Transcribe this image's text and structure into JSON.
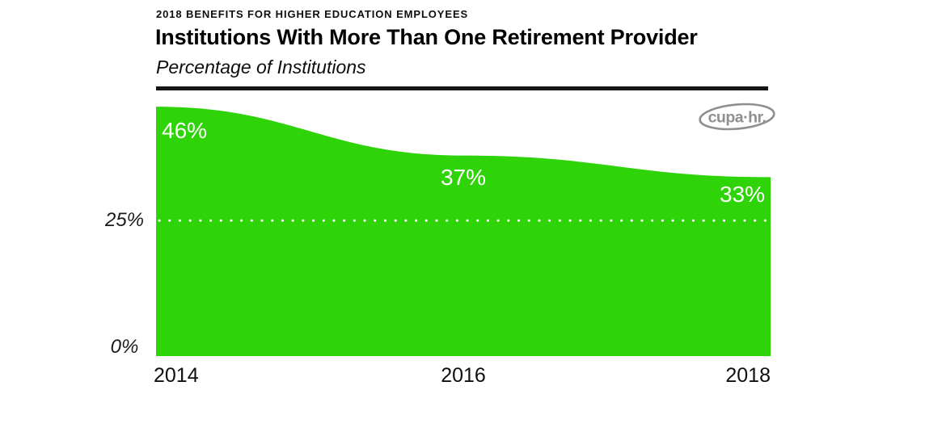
{
  "header": {
    "eyebrow": "2018 BENEFITS FOR HIGHER EDUCATION EMPLOYEES",
    "title": "Institutions With More Than One Retirement Provider",
    "subtitle": "Percentage of Institutions"
  },
  "logo": {
    "text": "cupa·hr."
  },
  "chart_data": {
    "type": "area",
    "title": "Institutions With More Than One Retirement Provider",
    "subtitle": "Percentage of Institutions",
    "categories": [
      "2014",
      "2016",
      "2018"
    ],
    "values": [
      46,
      37,
      33
    ],
    "data_labels": [
      "46%",
      "37%",
      "33%"
    ],
    "ytick_labels": [
      "25%",
      "0%"
    ],
    "ytick_values": [
      25,
      0
    ],
    "gridline_value": 25,
    "gridline_style": "dotted",
    "ylim": [
      0,
      49
    ],
    "xlabel": "",
    "ylabel": "Percentage of Institutions",
    "area_color": "#2ed408",
    "data_label_color": "#ffffff",
    "gridline_color": "#ffffff",
    "axis_text_color": "#1b1b1b",
    "legend_position": "none",
    "grid": "off"
  }
}
